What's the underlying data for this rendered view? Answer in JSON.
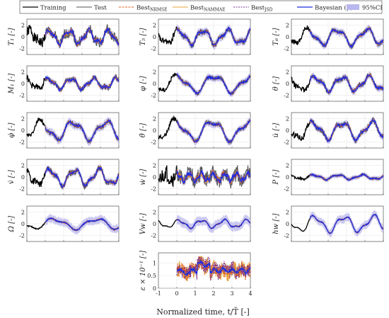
{
  "legend": [
    {
      "key": "training",
      "label": "Training",
      "sub": "",
      "color": "#000000",
      "dash": "",
      "width": 1.3,
      "kind": "line"
    },
    {
      "key": "test",
      "label": "Test",
      "sub": "",
      "color": "#555555",
      "dash": "",
      "width": 1.1,
      "kind": "line"
    },
    {
      "key": "nrmse",
      "label": "Best",
      "sub": "NRMSE",
      "color": "#d95f1e",
      "dash": "3,1.5",
      "width": 1.1,
      "kind": "line"
    },
    {
      "key": "nammae",
      "label": "Best",
      "sub": "NAMMAE",
      "color": "#e8a33d",
      "dash": "",
      "width": 1.1,
      "kind": "line"
    },
    {
      "key": "jsd",
      "label": "Best",
      "sub": "JSD",
      "color": "#7a2e8c",
      "dash": "2,1.5",
      "width": 1.1,
      "kind": "line"
    },
    {
      "key": "bayes",
      "label": "Bayesian (μ)",
      "sub": "",
      "color": "#1d2fe0",
      "dash": "",
      "width": 1.3,
      "kind": "line"
    },
    {
      "key": "ci",
      "label": "95%CI",
      "sub": "",
      "color": "#b9b7ee",
      "dash": "",
      "width": 0,
      "kind": "patch"
    }
  ],
  "xlabel": "Normalized time, t/T̄ [-]",
  "chart_data": [
    {
      "type": "line",
      "ylabel": "T₁ [-]",
      "x_range": [
        -1,
        4
      ],
      "ylim": [
        -3,
        3
      ],
      "yticks": [
        "2",
        "0",
        "-2"
      ],
      "amp": 1.0,
      "noise": 0.9,
      "freq": 1.5,
      "ci": 0.6,
      "phase": 0.2
    },
    {
      "type": "line",
      "ylabel": "T₅ [-]",
      "x_range": [
        -1,
        4
      ],
      "ylim": [
        -3,
        3
      ],
      "yticks": [
        "2",
        "0",
        "-2"
      ],
      "amp": 1.1,
      "noise": 0.5,
      "freq": 1.2,
      "ci": 0.7,
      "phase": 1.1
    },
    {
      "type": "line",
      "ylabel": "T₆ [-]",
      "x_range": [
        -1,
        4
      ],
      "ylim": [
        -3,
        3
      ],
      "yticks": [
        "2",
        "0",
        "-2"
      ],
      "amp": 1.2,
      "noise": 0.4,
      "freq": 1.0,
      "ci": 0.6,
      "phase": 2.0
    },
    {
      "type": "line",
      "ylabel": "M₁ [-]",
      "x_range": [
        -1,
        4
      ],
      "ylim": [
        -3,
        3
      ],
      "yticks": [
        "2",
        "0",
        "-2"
      ],
      "amp": 0.8,
      "noise": 0.5,
      "freq": 1.3,
      "ci": 0.5,
      "phase": 0.7
    },
    {
      "type": "line",
      "ylabel": "φ [-]",
      "x_range": [
        -1,
        4
      ],
      "ylim": [
        -3,
        3
      ],
      "yticks": [
        "2",
        "0",
        "-2"
      ],
      "amp": 1.3,
      "noise": 0.35,
      "freq": 0.8,
      "ci": 0.6,
      "phase": 1.5
    },
    {
      "type": "line",
      "ylabel": "θ [-]",
      "x_range": [
        -1,
        4
      ],
      "ylim": [
        -3,
        3
      ],
      "yticks": [
        "2",
        "0",
        "-2"
      ],
      "amp": 1.1,
      "noise": 0.45,
      "freq": 1.1,
      "ci": 0.6,
      "phase": 0.3
    },
    {
      "type": "line",
      "ylabel": "φ̇ [-]",
      "x_range": [
        -1,
        4
      ],
      "ylim": [
        -3,
        3
      ],
      "yticks": [
        "2",
        "0",
        "-2"
      ],
      "amp": 1.4,
      "noise": 0.4,
      "freq": 0.9,
      "ci": 0.7,
      "phase": 2.5
    },
    {
      "type": "line",
      "ylabel": "θ̇ [-]",
      "x_range": [
        -1,
        4
      ],
      "ylim": [
        -3,
        3
      ],
      "yticks": [
        "2",
        "0",
        "-2"
      ],
      "amp": 1.5,
      "noise": 0.4,
      "freq": 0.8,
      "ci": 0.6,
      "phase": 1.8
    },
    {
      "type": "line",
      "ylabel": "u̇ [-]",
      "x_range": [
        -1,
        4
      ],
      "ylim": [
        -3,
        3
      ],
      "yticks": [
        "2",
        "0",
        "-2"
      ],
      "amp": 1.3,
      "noise": 0.5,
      "freq": 1.0,
      "ci": 0.6,
      "phase": 0.9
    },
    {
      "type": "line",
      "ylabel": "v̇ [-]",
      "x_range": [
        -1,
        4
      ],
      "ylim": [
        -3,
        3
      ],
      "yticks": [
        "2",
        "0",
        "-2"
      ],
      "amp": 1.2,
      "noise": 0.55,
      "freq": 1.2,
      "ci": 0.6,
      "phase": 0.4
    },
    {
      "type": "line",
      "ylabel": "ẇ [-]",
      "x_range": [
        -1,
        4
      ],
      "ylim": [
        -3,
        3
      ],
      "yticks": [
        "2",
        "0",
        "-2"
      ],
      "amp": 0.6,
      "noise": 1.3,
      "freq": 2.5,
      "ci": 0.8,
      "phase": 1.2
    },
    {
      "type": "line",
      "ylabel": "P [-]",
      "x_range": [
        -1,
        4
      ],
      "ylim": [
        -3,
        3
      ],
      "yticks": [
        "2",
        "0",
        "-2"
      ],
      "amp": 0.35,
      "noise": 0.15,
      "freq": 1.2,
      "ci": 0.4,
      "phase": 0.6
    },
    {
      "type": "line",
      "ylabel": "Ω [-]",
      "x_range": [
        -1,
        4
      ],
      "ylim": [
        -3,
        3
      ],
      "yticks": [
        "2",
        "0",
        "-2"
      ],
      "amp": 0.8,
      "noise": 0.1,
      "freq": 0.7,
      "ci": 0.7,
      "phase": 0.2
    },
    {
      "type": "line",
      "ylabel": "Vw [-]",
      "x_range": [
        -1,
        4
      ],
      "ylim": [
        -3,
        3
      ],
      "yticks": [
        "2",
        "0",
        "-2"
      ],
      "amp": 0.6,
      "noise": 0.05,
      "freq": 1.3,
      "ci": 0.8,
      "phase": 1.0
    },
    {
      "type": "line",
      "ylabel": "hw [-]",
      "x_range": [
        -1,
        4
      ],
      "ylim": [
        -3,
        3
      ],
      "yticks": [
        "2",
        "0",
        "-2"
      ],
      "amp": 1.2,
      "noise": 0.05,
      "freq": 1.0,
      "ci": 0.7,
      "phase": 0.5
    },
    {
      "type": "line",
      "ylabel": "ε × 10⁻¹ [-]",
      "x_range": [
        -1,
        4
      ],
      "ylim": [
        0,
        1.4
      ],
      "yticks": [
        "1",
        "0.5",
        "0"
      ],
      "xticks": [
        "-1",
        "0",
        "1",
        "2",
        "3",
        "4"
      ],
      "amp": 0,
      "noise": 0,
      "freq": 0,
      "ci": 0.15,
      "phase": 0
    }
  ]
}
